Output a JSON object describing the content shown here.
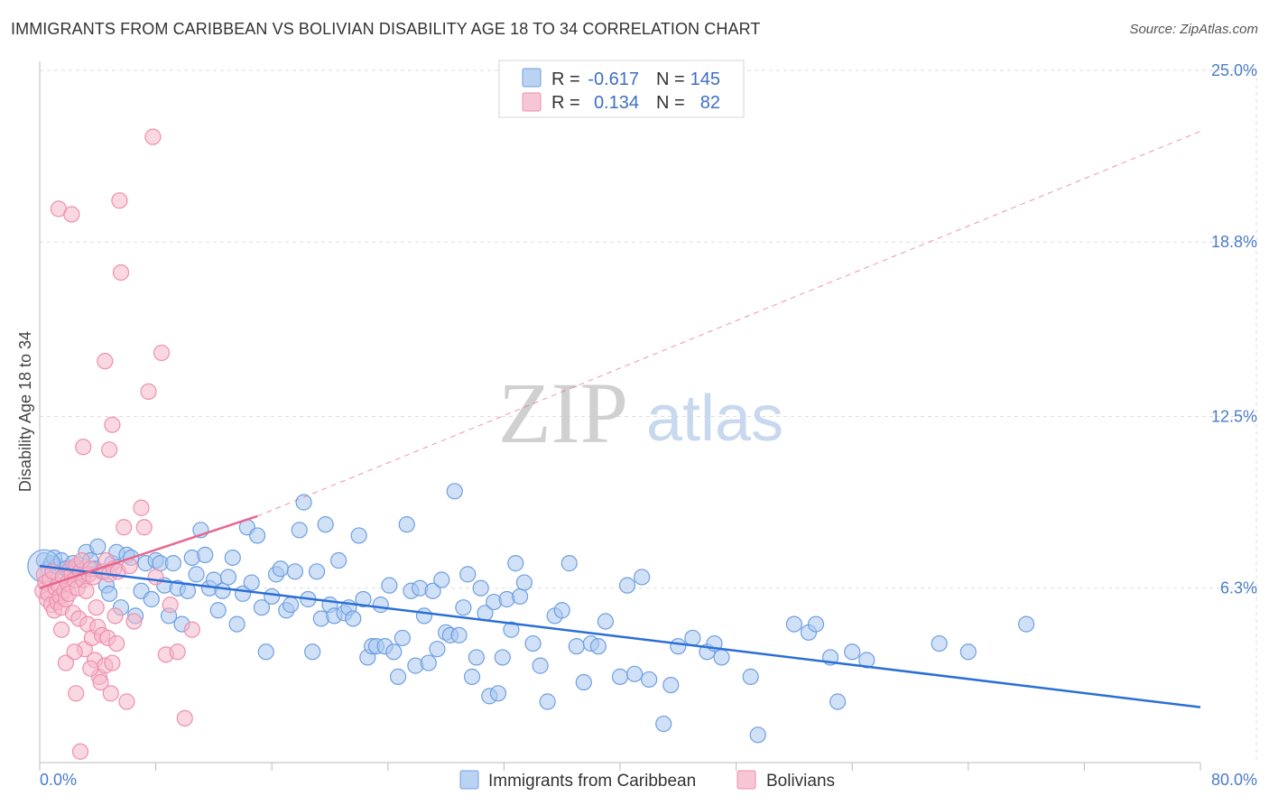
{
  "title": "IMMIGRANTS FROM CARIBBEAN VS BOLIVIAN DISABILITY AGE 18 TO 34 CORRELATION CHART",
  "source": "Source: ZipAtlas.com",
  "watermark": {
    "zip": "ZIP",
    "atlas": "atlas"
  },
  "legend": {
    "r_label": "R =",
    "n_label": "N =",
    "rows": [
      {
        "r": "-0.617",
        "n": "145",
        "color": "#a9c8f0"
      },
      {
        "r": "0.134",
        "n": "82",
        "color": "#f5b8cb"
      }
    ]
  },
  "colors": {
    "blue_fill": "#a9c8f0",
    "blue_stroke": "#6f9fe0",
    "blue_line": "#2a6fd6",
    "pink_fill": "#f5b8cb",
    "pink_stroke": "#ee8fae",
    "pink_line": "#e8668f",
    "grid": "#dddddd",
    "tick_text": "#4a7cc9"
  },
  "chart_data": {
    "type": "scatter",
    "title": "IMMIGRANTS FROM CARIBBEAN VS BOLIVIAN DISABILITY AGE 18 TO 34 CORRELATION CHART",
    "xlabel": "",
    "ylabel": "Disability Age 18 to 34",
    "xlim": [
      0,
      80
    ],
    "ylim": [
      0,
      25
    ],
    "x_tick_labels": [
      "0.0%",
      "80.0%"
    ],
    "y_ticks": [
      6.3,
      12.5,
      18.8,
      25.0
    ],
    "y_tick_labels": [
      "6.3%",
      "12.5%",
      "18.8%",
      "25.0%"
    ],
    "grid": true,
    "legend_position": "top-center",
    "series": [
      {
        "name": "Immigrants from Caribbean",
        "color": "#a9c8f0",
        "trend": {
          "x": [
            0,
            80
          ],
          "y": [
            7.1,
            2.0
          ],
          "style": "solid"
        },
        "points": [
          [
            0.3,
            7.3
          ],
          [
            0.6,
            7.0
          ],
          [
            0.8,
            7.2
          ],
          [
            1.0,
            7.4
          ],
          [
            1.2,
            7.1
          ],
          [
            1.5,
            7.3
          ],
          [
            1.8,
            7.0
          ],
          [
            2.0,
            6.9
          ],
          [
            2.3,
            7.2
          ],
          [
            2.6,
            7.0
          ],
          [
            3.0,
            6.8
          ],
          [
            3.2,
            7.6
          ],
          [
            3.5,
            7.3
          ],
          [
            3.8,
            7.0
          ],
          [
            4.0,
            7.8
          ],
          [
            4.3,
            6.9
          ],
          [
            4.6,
            6.4
          ],
          [
            4.8,
            6.1
          ],
          [
            5.0,
            7.2
          ],
          [
            5.3,
            7.6
          ],
          [
            5.6,
            5.6
          ],
          [
            6.0,
            7.5
          ],
          [
            6.3,
            7.4
          ],
          [
            6.6,
            5.3
          ],
          [
            7.0,
            6.2
          ],
          [
            7.3,
            7.2
          ],
          [
            7.7,
            5.9
          ],
          [
            8.0,
            7.3
          ],
          [
            8.3,
            7.2
          ],
          [
            8.6,
            6.4
          ],
          [
            8.9,
            5.3
          ],
          [
            9.2,
            7.2
          ],
          [
            9.5,
            6.3
          ],
          [
            9.8,
            5.0
          ],
          [
            10.2,
            6.2
          ],
          [
            10.5,
            7.4
          ],
          [
            10.8,
            6.8
          ],
          [
            11.1,
            8.4
          ],
          [
            11.4,
            7.5
          ],
          [
            11.7,
            6.3
          ],
          [
            12.0,
            6.6
          ],
          [
            12.3,
            5.5
          ],
          [
            12.6,
            6.2
          ],
          [
            13.0,
            6.7
          ],
          [
            13.3,
            7.4
          ],
          [
            13.6,
            5.0
          ],
          [
            14.0,
            6.1
          ],
          [
            14.3,
            8.5
          ],
          [
            14.6,
            6.5
          ],
          [
            15.0,
            8.2
          ],
          [
            15.3,
            5.6
          ],
          [
            15.6,
            4.0
          ],
          [
            16.0,
            6.0
          ],
          [
            16.3,
            6.8
          ],
          [
            16.6,
            7.0
          ],
          [
            17.0,
            5.5
          ],
          [
            17.3,
            5.7
          ],
          [
            17.6,
            6.9
          ],
          [
            17.9,
            8.4
          ],
          [
            18.2,
            9.4
          ],
          [
            18.5,
            5.9
          ],
          [
            18.8,
            4.0
          ],
          [
            19.1,
            6.9
          ],
          [
            19.4,
            5.2
          ],
          [
            19.7,
            8.6
          ],
          [
            20.0,
            5.7
          ],
          [
            20.3,
            5.3
          ],
          [
            20.6,
            7.3
          ],
          [
            21.0,
            5.4
          ],
          [
            21.3,
            5.6
          ],
          [
            21.6,
            5.2
          ],
          [
            22.0,
            8.2
          ],
          [
            22.3,
            5.9
          ],
          [
            22.6,
            3.8
          ],
          [
            22.9,
            4.2
          ],
          [
            23.2,
            4.2
          ],
          [
            23.5,
            5.7
          ],
          [
            23.8,
            4.2
          ],
          [
            24.1,
            6.4
          ],
          [
            24.4,
            4.0
          ],
          [
            24.7,
            3.1
          ],
          [
            25.0,
            4.5
          ],
          [
            25.3,
            8.6
          ],
          [
            25.6,
            6.2
          ],
          [
            25.9,
            3.5
          ],
          [
            26.2,
            6.3
          ],
          [
            26.5,
            5.3
          ],
          [
            26.8,
            3.6
          ],
          [
            27.1,
            6.2
          ],
          [
            27.4,
            4.1
          ],
          [
            27.7,
            6.6
          ],
          [
            28.0,
            4.7
          ],
          [
            28.3,
            4.6
          ],
          [
            28.6,
            9.8
          ],
          [
            28.9,
            4.6
          ],
          [
            29.2,
            5.6
          ],
          [
            29.5,
            6.8
          ],
          [
            29.8,
            3.1
          ],
          [
            30.1,
            3.8
          ],
          [
            30.4,
            6.3
          ],
          [
            30.7,
            5.4
          ],
          [
            31.0,
            2.4
          ],
          [
            31.3,
            5.8
          ],
          [
            31.6,
            2.5
          ],
          [
            31.9,
            3.8
          ],
          [
            32.2,
            5.9
          ],
          [
            32.5,
            4.8
          ],
          [
            32.8,
            7.2
          ],
          [
            33.1,
            6.0
          ],
          [
            33.4,
            6.5
          ],
          [
            34.0,
            4.3
          ],
          [
            34.5,
            3.5
          ],
          [
            35.0,
            2.2
          ],
          [
            35.5,
            5.3
          ],
          [
            36.0,
            5.5
          ],
          [
            36.5,
            7.2
          ],
          [
            37.0,
            4.2
          ],
          [
            37.5,
            2.9
          ],
          [
            38.0,
            4.3
          ],
          [
            38.5,
            4.2
          ],
          [
            39.0,
            5.1
          ],
          [
            40.0,
            3.1
          ],
          [
            40.5,
            6.4
          ],
          [
            41.0,
            3.2
          ],
          [
            41.5,
            6.7
          ],
          [
            42.0,
            3.0
          ],
          [
            43.0,
            1.4
          ],
          [
            43.5,
            2.8
          ],
          [
            44.0,
            4.2
          ],
          [
            45.0,
            4.5
          ],
          [
            46.0,
            4.0
          ],
          [
            46.5,
            4.3
          ],
          [
            47.0,
            3.8
          ],
          [
            49.0,
            3.1
          ],
          [
            49.5,
            1.0
          ],
          [
            52.0,
            5.0
          ],
          [
            53.0,
            4.7
          ],
          [
            53.5,
            5.0
          ],
          [
            54.5,
            3.8
          ],
          [
            55.0,
            2.2
          ],
          [
            56.0,
            4.0
          ],
          [
            57.0,
            3.7
          ],
          [
            62.0,
            4.3
          ],
          [
            64.0,
            4.0
          ],
          [
            68.0,
            5.0
          ]
        ]
      },
      {
        "name": "Bolivians",
        "color": "#f5b8cb",
        "trend": {
          "x": [
            0,
            15
          ],
          "y": [
            6.3,
            8.9
          ],
          "style": "solid",
          "extended_x": [
            15,
            80
          ],
          "extended_y": [
            8.9,
            22.8
          ],
          "extended_style": "dashed"
        },
        "points": [
          [
            0.2,
            6.2
          ],
          [
            0.3,
            6.8
          ],
          [
            0.4,
            6.5
          ],
          [
            0.5,
            5.9
          ],
          [
            0.6,
            6.1
          ],
          [
            0.7,
            6.6
          ],
          [
            0.8,
            5.7
          ],
          [
            0.9,
            6.9
          ],
          [
            1.0,
            5.5
          ],
          [
            1.1,
            6.3
          ],
          [
            1.2,
            5.8
          ],
          [
            1.3,
            6.4
          ],
          [
            1.4,
            6.0
          ],
          [
            1.5,
            5.6
          ],
          [
            1.6,
            6.7
          ],
          [
            1.7,
            6.2
          ],
          [
            1.8,
            5.9
          ],
          [
            1.9,
            6.5
          ],
          [
            2.0,
            6.1
          ],
          [
            2.1,
            7.0
          ],
          [
            2.2,
            6.8
          ],
          [
            2.3,
            5.4
          ],
          [
            2.4,
            6.6
          ],
          [
            2.5,
            7.1
          ],
          [
            2.6,
            6.3
          ],
          [
            2.7,
            5.2
          ],
          [
            2.8,
            6.9
          ],
          [
            2.9,
            7.3
          ],
          [
            3.0,
            6.6
          ],
          [
            3.1,
            4.1
          ],
          [
            3.2,
            6.2
          ],
          [
            3.3,
            5.0
          ],
          [
            3.4,
            6.8
          ],
          [
            3.5,
            7.0
          ],
          [
            3.6,
            4.5
          ],
          [
            3.7,
            6.7
          ],
          [
            3.8,
            3.7
          ],
          [
            3.9,
            5.6
          ],
          [
            4.0,
            4.9
          ],
          [
            4.1,
            3.1
          ],
          [
            4.2,
            2.9
          ],
          [
            4.3,
            4.6
          ],
          [
            4.4,
            6.9
          ],
          [
            4.5,
            3.5
          ],
          [
            4.6,
            7.3
          ],
          [
            4.7,
            4.5
          ],
          [
            4.8,
            6.8
          ],
          [
            4.9,
            2.5
          ],
          [
            5.0,
            3.6
          ],
          [
            5.1,
            7.0
          ],
          [
            5.2,
            5.3
          ],
          [
            5.3,
            4.3
          ],
          [
            5.4,
            6.9
          ],
          [
            1.3,
            20.0
          ],
          [
            2.2,
            19.8
          ],
          [
            3.0,
            11.4
          ],
          [
            4.8,
            11.3
          ],
          [
            5.0,
            12.2
          ],
          [
            4.5,
            14.5
          ],
          [
            5.5,
            20.3
          ],
          [
            5.6,
            17.7
          ],
          [
            5.8,
            8.5
          ],
          [
            6.2,
            7.1
          ],
          [
            6.5,
            5.1
          ],
          [
            7.0,
            9.2
          ],
          [
            7.2,
            8.5
          ],
          [
            7.5,
            13.4
          ],
          [
            7.8,
            22.6
          ],
          [
            8.0,
            6.7
          ],
          [
            8.4,
            14.8
          ],
          [
            8.7,
            3.9
          ],
          [
            9.0,
            5.7
          ],
          [
            9.5,
            4.0
          ],
          [
            10.0,
            1.6
          ],
          [
            10.5,
            4.8
          ],
          [
            6.0,
            2.2
          ],
          [
            2.8,
            0.4
          ],
          [
            3.5,
            3.4
          ],
          [
            2.5,
            2.5
          ],
          [
            1.8,
            3.6
          ],
          [
            2.4,
            4.0
          ],
          [
            1.5,
            4.8
          ]
        ]
      }
    ]
  },
  "bottom_legend": [
    {
      "label": "Immigrants from Caribbean",
      "color": "#a9c8f0"
    },
    {
      "label": "Bolivians",
      "color": "#f5b8cb"
    }
  ]
}
